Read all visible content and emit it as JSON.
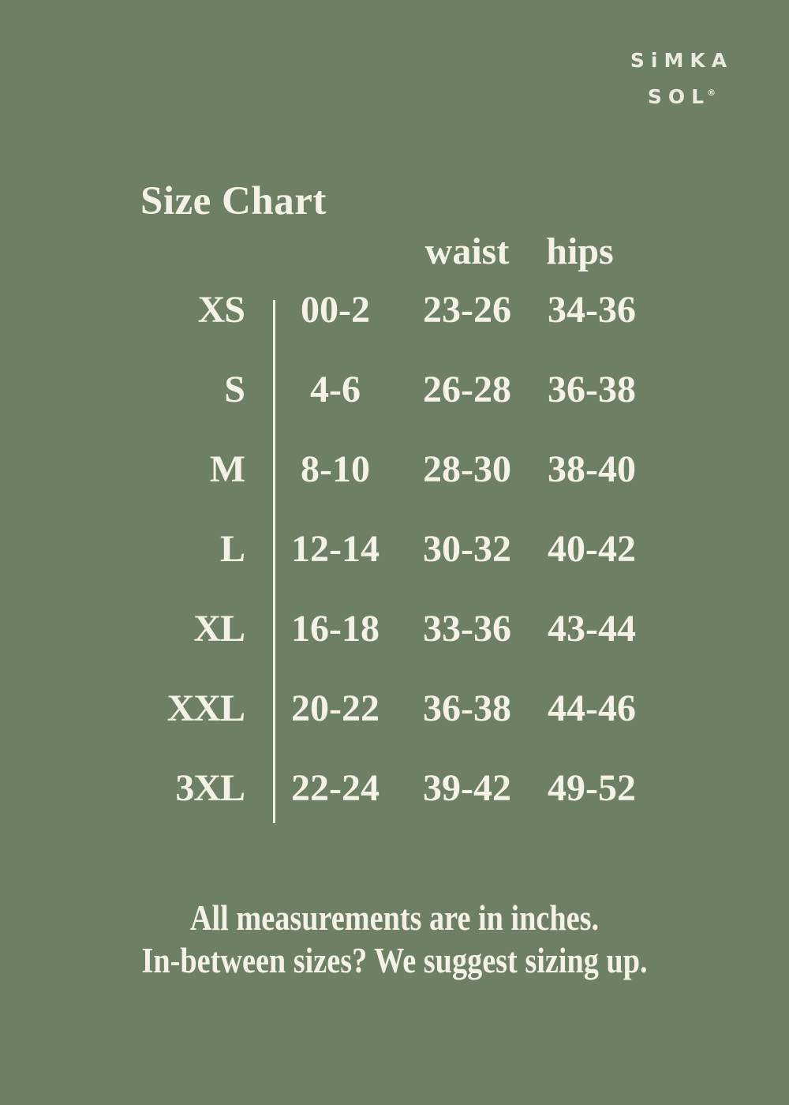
{
  "brand": {
    "line1": "SiMKA",
    "line2": "SOL",
    "registered": "®"
  },
  "title": "Size Chart",
  "table": {
    "headers": {
      "waist": "waist",
      "hips": "hips"
    },
    "rows": [
      {
        "size": "XS",
        "num": "00-2",
        "waist": "23-26",
        "hips": "34-36"
      },
      {
        "size": "S",
        "num": "4-6",
        "waist": "26-28",
        "hips": "36-38"
      },
      {
        "size": "M",
        "num": "8-10",
        "waist": "28-30",
        "hips": "38-40"
      },
      {
        "size": "L",
        "num": "12-14",
        "waist": "30-32",
        "hips": "40-42"
      },
      {
        "size": "XL",
        "num": "16-18",
        "waist": "33-36",
        "hips": "43-44"
      },
      {
        "size": "XXL",
        "num": "20-22",
        "waist": "36-38",
        "hips": "44-46"
      },
      {
        "size": "3XL",
        "num": "22-24",
        "waist": "39-42",
        "hips": "49-52"
      }
    ]
  },
  "footer": {
    "line1": "All measurements are in inches.",
    "line2": "In-between sizes? We suggest sizing up."
  },
  "colors": {
    "background": "#6d7f64",
    "text": "#f4f1e6"
  },
  "chart_data": {
    "type": "table",
    "title": "Size Chart",
    "units": "inches",
    "columns": [
      "size",
      "us_size",
      "waist",
      "hips"
    ],
    "rows": [
      [
        "XS",
        "00-2",
        "23-26",
        "34-36"
      ],
      [
        "S",
        "4-6",
        "26-28",
        "36-38"
      ],
      [
        "M",
        "8-10",
        "28-30",
        "38-40"
      ],
      [
        "L",
        "12-14",
        "30-32",
        "40-42"
      ],
      [
        "XL",
        "16-18",
        "33-36",
        "43-44"
      ],
      [
        "XXL",
        "20-22",
        "36-38",
        "44-46"
      ],
      [
        "3XL",
        "22-24",
        "39-42",
        "49-52"
      ]
    ],
    "notes": [
      "All measurements are in inches.",
      "In-between sizes? We suggest sizing up."
    ]
  }
}
